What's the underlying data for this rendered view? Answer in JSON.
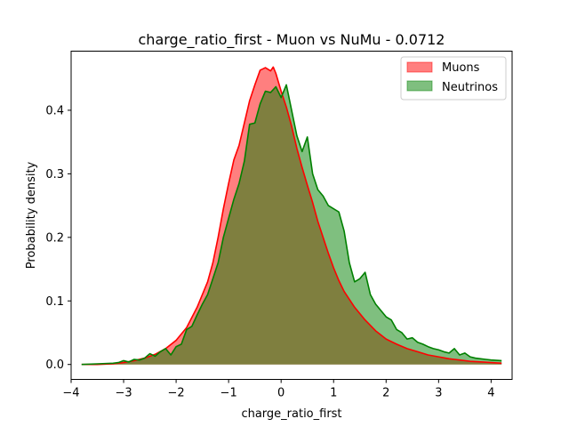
{
  "chart_data": {
    "type": "area",
    "title": "charge_ratio_first - Muon vs NuMu - 0.0712",
    "xlabel": "charge_ratio_first",
    "ylabel": "Probability density",
    "xlim": [
      -4.0,
      4.4
    ],
    "ylim": [
      -0.0235,
      0.493
    ],
    "xticks": [
      -4,
      -3,
      -2,
      -1,
      0,
      1,
      2,
      3,
      4
    ],
    "xtick_labels": [
      "−4",
      "−3",
      "−2",
      "−1",
      "0",
      "1",
      "2",
      "3",
      "4"
    ],
    "yticks": [
      0.0,
      0.1,
      0.2,
      0.3,
      0.4
    ],
    "ytick_labels": [
      "0.0",
      "0.1",
      "0.2",
      "0.3",
      "0.4"
    ],
    "grid": false,
    "legend": "top-right",
    "series": [
      {
        "name": "Muons",
        "line_color": "#ff0000",
        "fill_color": "#ff0000",
        "fill_alpha": 0.5,
        "x": [
          -3.8,
          -3.5,
          -3.2,
          -3.0,
          -2.8,
          -2.6,
          -2.4,
          -2.2,
          -2.0,
          -1.8,
          -1.6,
          -1.4,
          -1.3,
          -1.2,
          -1.1,
          -1.0,
          -0.9,
          -0.8,
          -0.7,
          -0.6,
          -0.5,
          -0.4,
          -0.3,
          -0.2,
          -0.15,
          -0.1,
          0.0,
          0.1,
          0.2,
          0.3,
          0.4,
          0.5,
          0.6,
          0.7,
          0.8,
          0.9,
          1.0,
          1.1,
          1.2,
          1.4,
          1.6,
          1.8,
          2.0,
          2.2,
          2.4,
          2.6,
          2.8,
          3.0,
          3.2,
          3.4,
          3.6,
          3.8,
          4.0,
          4.2
        ],
        "y": [
          0.0,
          0.0,
          0.001,
          0.003,
          0.006,
          0.01,
          0.016,
          0.025,
          0.038,
          0.058,
          0.09,
          0.13,
          0.16,
          0.2,
          0.245,
          0.285,
          0.322,
          0.345,
          0.38,
          0.415,
          0.44,
          0.463,
          0.467,
          0.462,
          0.468,
          0.458,
          0.43,
          0.405,
          0.375,
          0.34,
          0.31,
          0.282,
          0.255,
          0.225,
          0.2,
          0.175,
          0.152,
          0.132,
          0.115,
          0.09,
          0.07,
          0.053,
          0.04,
          0.032,
          0.025,
          0.02,
          0.015,
          0.012,
          0.009,
          0.007,
          0.005,
          0.004,
          0.003,
          0.002
        ]
      },
      {
        "name": "Neutrinos",
        "line_color": "#008000",
        "fill_color": "#008000",
        "fill_alpha": 0.5,
        "x": [
          -3.8,
          -3.5,
          -3.2,
          -3.1,
          -3.0,
          -2.9,
          -2.8,
          -2.7,
          -2.6,
          -2.5,
          -2.4,
          -2.3,
          -2.2,
          -2.1,
          -2.0,
          -1.9,
          -1.8,
          -1.7,
          -1.6,
          -1.5,
          -1.4,
          -1.3,
          -1.2,
          -1.1,
          -1.0,
          -0.9,
          -0.8,
          -0.7,
          -0.6,
          -0.5,
          -0.4,
          -0.3,
          -0.2,
          -0.1,
          0.0,
          0.1,
          0.2,
          0.3,
          0.4,
          0.5,
          0.6,
          0.7,
          0.8,
          0.9,
          1.0,
          1.1,
          1.2,
          1.3,
          1.4,
          1.5,
          1.6,
          1.7,
          1.8,
          1.9,
          2.0,
          2.1,
          2.2,
          2.3,
          2.4,
          2.5,
          2.6,
          2.7,
          2.8,
          2.9,
          3.0,
          3.1,
          3.2,
          3.3,
          3.4,
          3.5,
          3.6,
          3.7,
          3.8,
          3.9,
          4.0,
          4.2
        ],
        "y": [
          0.0,
          0.001,
          0.002,
          0.003,
          0.006,
          0.004,
          0.008,
          0.007,
          0.01,
          0.017,
          0.013,
          0.02,
          0.025,
          0.015,
          0.028,
          0.032,
          0.055,
          0.06,
          0.078,
          0.095,
          0.11,
          0.135,
          0.16,
          0.2,
          0.23,
          0.26,
          0.285,
          0.32,
          0.378,
          0.38,
          0.41,
          0.43,
          0.428,
          0.437,
          0.42,
          0.44,
          0.4,
          0.36,
          0.335,
          0.358,
          0.3,
          0.275,
          0.265,
          0.25,
          0.245,
          0.24,
          0.21,
          0.16,
          0.13,
          0.135,
          0.145,
          0.11,
          0.095,
          0.085,
          0.075,
          0.07,
          0.055,
          0.05,
          0.04,
          0.042,
          0.035,
          0.032,
          0.028,
          0.025,
          0.023,
          0.02,
          0.018,
          0.025,
          0.015,
          0.018,
          0.012,
          0.01,
          0.009,
          0.008,
          0.007,
          0.006
        ]
      }
    ]
  }
}
